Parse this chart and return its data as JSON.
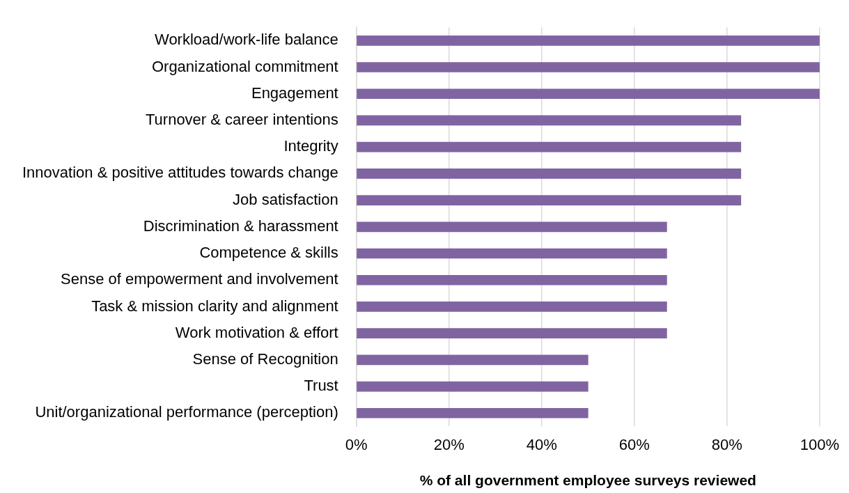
{
  "chart_data": {
    "type": "bar",
    "orientation": "horizontal",
    "xlabel": "% of all government employee surveys reviewed",
    "categories": [
      "Workload/work-life balance",
      "Organizational commitment",
      "Engagement",
      "Turnover & career intentions",
      "Integrity",
      "Innovation & positive attitudes towards change",
      "Job satisfaction",
      "Discrimination & harassment",
      "Competence & skills",
      "Sense of empowerment and involvement",
      "Task & mission clarity and alignment",
      "Work motivation & effort",
      "Sense of Recognition",
      "Trust",
      "Unit/organizational performance (perception)"
    ],
    "values": [
      100,
      100,
      100,
      83,
      83,
      83,
      83,
      67,
      67,
      67,
      67,
      67,
      50,
      50,
      50
    ],
    "color": "#8064a2",
    "xlim": [
      0,
      100
    ],
    "xticks": [
      {
        "value": 0,
        "label": "0%"
      },
      {
        "value": 20,
        "label": "20%"
      },
      {
        "value": 40,
        "label": "40%"
      },
      {
        "value": 60,
        "label": "60%"
      },
      {
        "value": 80,
        "label": "80%"
      },
      {
        "value": 100,
        "label": "100%"
      }
    ],
    "grid": "x",
    "legend": false
  }
}
